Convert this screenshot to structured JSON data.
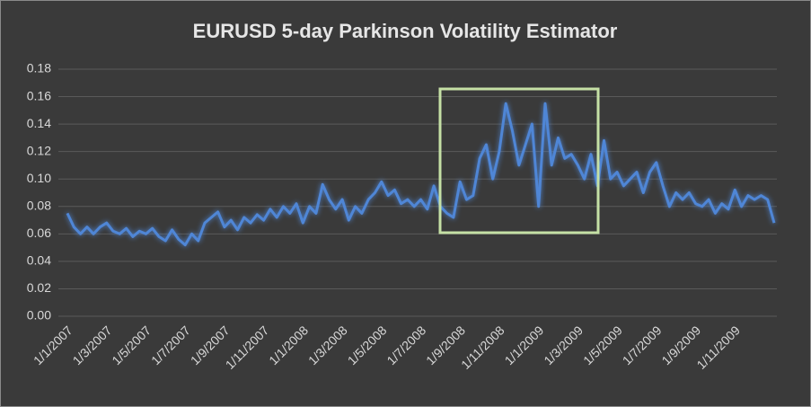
{
  "chart_data": {
    "type": "line",
    "title": "EURUSD 5-day Parkinson Volatility Estimator",
    "categories": [
      "1/1/2007",
      null,
      null,
      null,
      null,
      null,
      "1/3/2007",
      null,
      null,
      null,
      null,
      null,
      "1/5/2007",
      null,
      null,
      null,
      null,
      null,
      "1/7/2007",
      null,
      null,
      null,
      null,
      null,
      "1/9/2007",
      null,
      null,
      null,
      null,
      null,
      "1/11/2007",
      null,
      null,
      null,
      null,
      null,
      "1/1/2008",
      null,
      null,
      null,
      null,
      null,
      "1/3/2008",
      null,
      null,
      null,
      null,
      null,
      "1/5/2008",
      null,
      null,
      null,
      null,
      null,
      "1/7/2008",
      null,
      null,
      null,
      null,
      null,
      "1/9/2008",
      null,
      null,
      null,
      null,
      null,
      "1/11/2008",
      null,
      null,
      null,
      null,
      null,
      "1/1/2009",
      null,
      null,
      null,
      null,
      null,
      "1/3/2009",
      null,
      null,
      null,
      null,
      null,
      "1/5/2009",
      null,
      null,
      null,
      null,
      null,
      "1/7/2009",
      null,
      null,
      null,
      null,
      null,
      "1/9/2009",
      null,
      null,
      null,
      null,
      null,
      "1/11/2009",
      null,
      null,
      null,
      null,
      null,
      null
    ],
    "series": [
      {
        "name": "EURUSD",
        "color": "#4f86d6",
        "values": [
          0.075,
          0.065,
          0.06,
          0.065,
          0.06,
          0.065,
          0.068,
          0.062,
          0.06,
          0.064,
          0.058,
          0.062,
          0.06,
          0.064,
          0.058,
          0.055,
          0.063,
          0.056,
          0.052,
          0.06,
          0.055,
          0.068,
          0.072,
          0.076,
          0.065,
          0.07,
          0.063,
          0.072,
          0.068,
          0.074,
          0.07,
          0.078,
          0.072,
          0.08,
          0.075,
          0.082,
          0.068,
          0.08,
          0.075,
          0.096,
          0.085,
          0.078,
          0.085,
          0.07,
          0.08,
          0.075,
          0.085,
          0.09,
          0.098,
          0.088,
          0.092,
          0.082,
          0.085,
          0.08,
          0.085,
          0.078,
          0.095,
          0.08,
          0.075,
          0.072,
          0.098,
          0.085,
          0.088,
          0.115,
          0.125,
          0.1,
          0.12,
          0.155,
          0.135,
          0.11,
          0.125,
          0.14,
          0.08,
          0.155,
          0.11,
          0.13,
          0.115,
          0.118,
          0.11,
          0.1,
          0.118,
          0.095,
          0.128,
          0.1,
          0.105,
          0.095,
          0.1,
          0.105,
          0.09,
          0.105,
          0.112,
          0.095,
          0.08,
          0.09,
          0.085,
          0.09,
          0.082,
          0.08,
          0.085,
          0.075,
          0.082,
          0.078,
          0.092,
          0.08,
          0.088,
          0.085,
          0.088,
          0.085,
          0.068
        ]
      }
    ],
    "ylim": [
      0,
      0.18
    ],
    "yticks": [
      {
        "value": 0,
        "label": "0.00"
      },
      {
        "value": 0.02,
        "label": "0.02"
      },
      {
        "value": 0.04,
        "label": "0.04"
      },
      {
        "value": 0.06,
        "label": "0.06"
      },
      {
        "value": 0.08,
        "label": "0.08"
      },
      {
        "value": 0.1,
        "label": "0.10"
      },
      {
        "value": 0.12,
        "label": "0.12"
      },
      {
        "value": 0.14,
        "label": "0.14"
      },
      {
        "value": 0.16,
        "label": "0.16"
      },
      {
        "value": 0.18,
        "label": "0.18"
      }
    ],
    "grid": true
  }
}
